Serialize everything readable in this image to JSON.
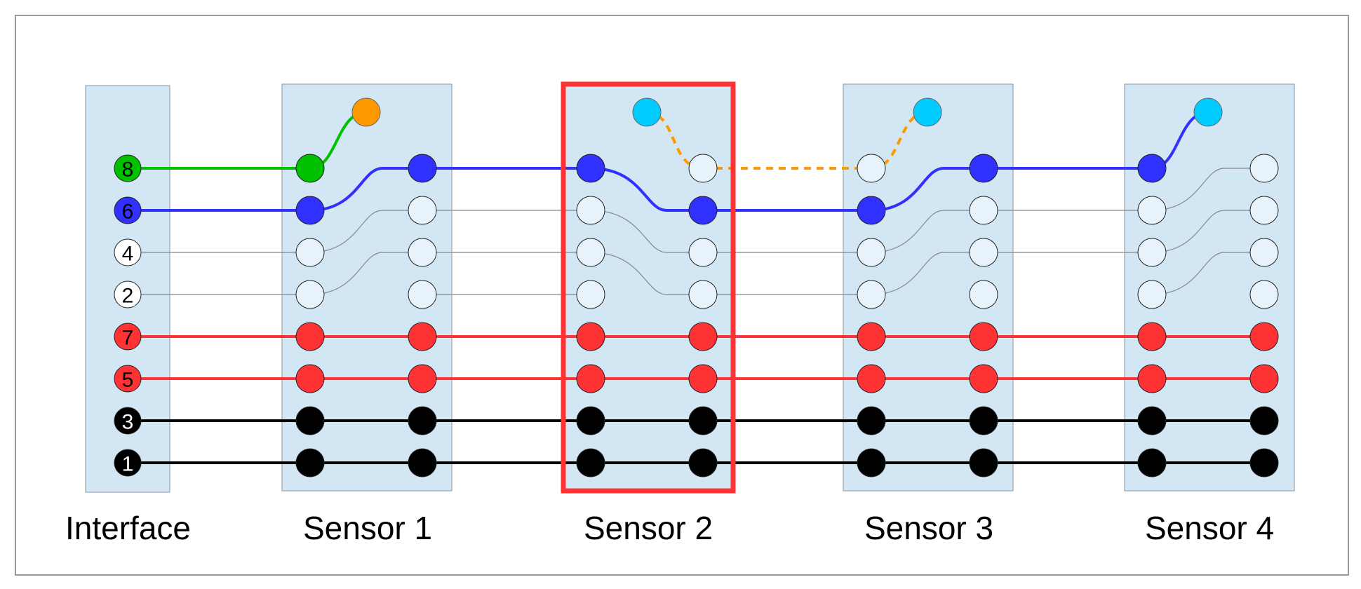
{
  "colors": {
    "panel_fill": "#d3e6f4",
    "panel_stroke": "#8c96a0",
    "frame_stroke": "#9a9a9a",
    "highlight": "#ff3333",
    "green": "#00c000",
    "blue": "#3030ff",
    "red": "#ff3333",
    "black": "#000000",
    "orange": "#ff9900",
    "cyan": "#00ccff",
    "thin": "#888888",
    "empty_pin": "#e8f2fa"
  },
  "interface": {
    "label": "Interface",
    "pins": [
      {
        "num": "8",
        "color": "green"
      },
      {
        "num": "6",
        "color": "blue"
      },
      {
        "num": "4",
        "color": "white"
      },
      {
        "num": "2",
        "color": "white"
      },
      {
        "num": "7",
        "color": "red"
      },
      {
        "num": "5",
        "color": "red"
      },
      {
        "num": "3",
        "color": "black"
      },
      {
        "num": "1",
        "color": "black"
      }
    ]
  },
  "sensors": [
    {
      "label": "Sensor 1",
      "highlighted": false,
      "indicator_color": "orange",
      "indicator_pos": "right"
    },
    {
      "label": "Sensor 2",
      "highlighted": true,
      "indicator_color": "cyan",
      "indicator_pos": "left"
    },
    {
      "label": "Sensor 3",
      "highlighted": false,
      "indicator_color": "cyan",
      "indicator_pos": "right"
    },
    {
      "label": "Sensor 4",
      "highlighted": false,
      "indicator_color": "cyan",
      "indicator_pos": "right"
    }
  ]
}
